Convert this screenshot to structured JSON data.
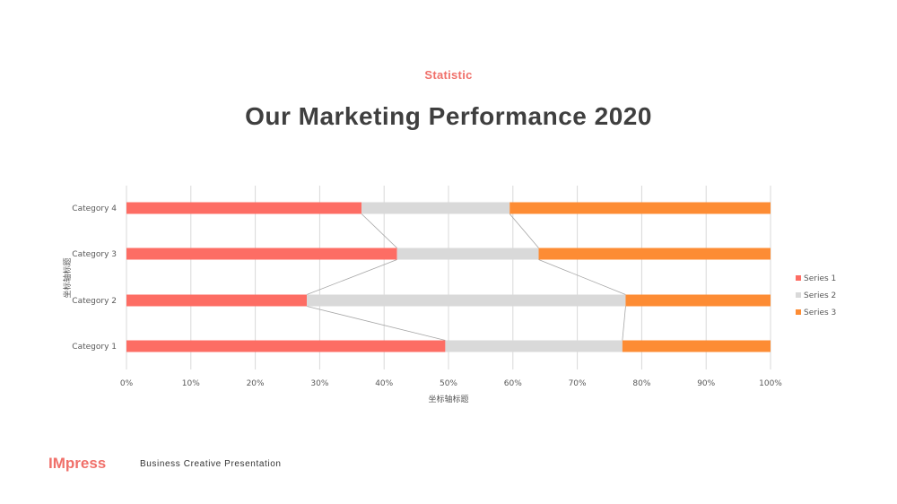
{
  "header": {
    "eyebrow": "Statistic",
    "title": "Our Marketing Performance 2020"
  },
  "footer": {
    "brand": "IMpress",
    "tagline": "Business Creative Presentation"
  },
  "chart_data": {
    "type": "bar",
    "orientation": "horizontal",
    "stacking": "percent",
    "categories": [
      "Category 1",
      "Category 2",
      "Category 3",
      "Category 4"
    ],
    "series": [
      {
        "name": "Series 1",
        "values": [
          49.5,
          28,
          42,
          36.5
        ],
        "color": "#fd6d64"
      },
      {
        "name": "Series 2",
        "values": [
          27.5,
          49.5,
          22,
          23
        ],
        "color": "#d9d9d9"
      },
      {
        "name": "Series 3",
        "values": [
          23,
          22.5,
          36,
          40.5
        ],
        "color": "#fd8c34"
      }
    ],
    "xticks": [
      "0%",
      "10%",
      "20%",
      "30%",
      "40%",
      "50%",
      "60%",
      "70%",
      "80%",
      "90%",
      "100%"
    ],
    "xlim": [
      0,
      100
    ],
    "xlabel": "坐标轴标题",
    "ylabel": "坐标轴标题",
    "grid": "vertical",
    "series_lines": true,
    "legend": "right"
  }
}
